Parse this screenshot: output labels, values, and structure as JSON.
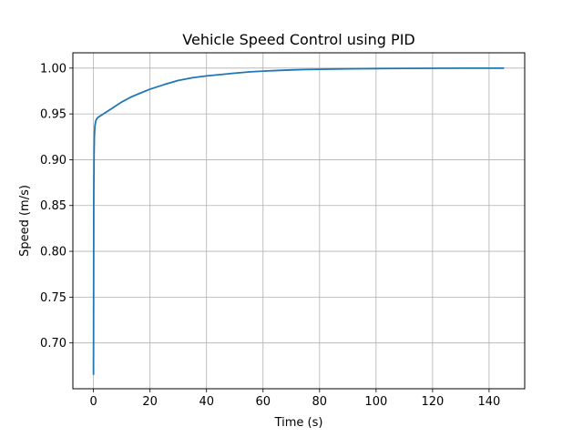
{
  "chart_data": {
    "type": "line",
    "title": "Vehicle Speed Control using PID",
    "xlabel": "Time (s)",
    "ylabel": "Speed (m/s)",
    "xlim": [
      -7.3,
      152.6
    ],
    "ylim": [
      0.65,
      1.0167
    ],
    "xticks": [
      0,
      20,
      40,
      60,
      80,
      100,
      120,
      140
    ],
    "xtick_labels": [
      "0",
      "20",
      "40",
      "60",
      "80",
      "100",
      "120",
      "140"
    ],
    "yticks": [
      0.7,
      0.75,
      0.8,
      0.85,
      0.9,
      0.95,
      1.0
    ],
    "ytick_labels": [
      "0.70",
      "0.75",
      "0.80",
      "0.85",
      "0.90",
      "0.95",
      "1.00"
    ],
    "grid": true,
    "series": [
      {
        "color": "#1f77b4",
        "x": [
          0,
          0.1,
          0.2,
          0.3,
          0.5,
          0.8,
          1,
          1.5,
          2,
          3,
          5,
          7,
          10,
          13,
          16,
          20,
          25,
          30,
          35,
          40,
          45,
          50,
          55,
          60,
          65,
          70,
          75,
          80,
          85,
          90,
          100,
          110,
          120,
          130,
          140,
          145
        ],
        "y": [
          0.666,
          0.86,
          0.905,
          0.925,
          0.937,
          0.942,
          0.944,
          0.946,
          0.947,
          0.949,
          0.953,
          0.957,
          0.963,
          0.968,
          0.972,
          0.977,
          0.982,
          0.9865,
          0.9895,
          0.9915,
          0.993,
          0.9945,
          0.9958,
          0.9967,
          0.9974,
          0.998,
          0.9984,
          0.9987,
          0.999,
          0.9992,
          0.9995,
          0.9997,
          0.9998,
          0.9999,
          0.99995,
          1.0
        ]
      }
    ]
  }
}
